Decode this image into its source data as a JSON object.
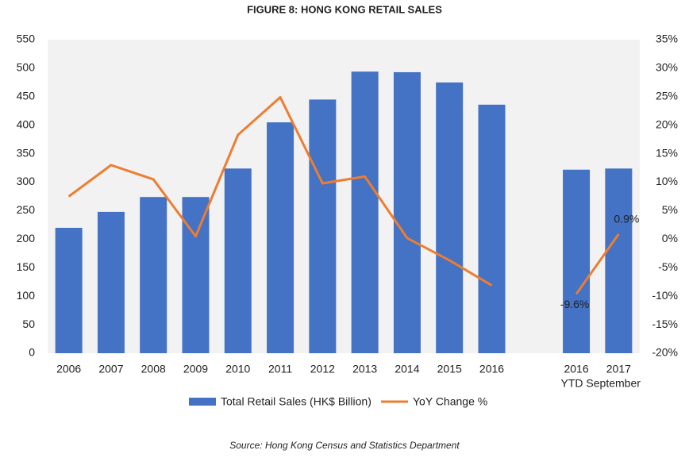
{
  "chart_data": {
    "type": "bar_line",
    "title": "FIGURE 8: HONG KONG RETAIL SALES",
    "categories": [
      "2006",
      "2007",
      "2008",
      "2009",
      "2010",
      "2011",
      "2012",
      "2013",
      "2014",
      "2015",
      "2016",
      null,
      "2016",
      "2017"
    ],
    "group_label": "YTD September",
    "series": [
      {
        "name": "Total Retail Sales (HK$ Billion)",
        "type": "bar",
        "color": "#4472c4",
        "values": [
          220,
          248,
          274,
          274,
          324,
          405,
          445,
          494,
          493,
          475,
          436,
          null,
          322,
          324
        ]
      },
      {
        "name": "YoY Change %",
        "type": "line",
        "axis": "y2",
        "color": "#ed7d31",
        "values": [
          7.5,
          13,
          10.5,
          0.5,
          18.3,
          24.9,
          9.8,
          11.0,
          0.2,
          -3.7,
          -8.1,
          null,
          -9.6,
          0.9
        ],
        "value_labels": [
          null,
          null,
          null,
          null,
          null,
          null,
          null,
          null,
          null,
          null,
          null,
          null,
          "-9.6%",
          "0.9%"
        ]
      }
    ],
    "ylim": [
      0,
      550
    ],
    "yticks": [
      0,
      50,
      100,
      150,
      200,
      250,
      300,
      350,
      400,
      450,
      500,
      550
    ],
    "y2lim": [
      -20,
      35
    ],
    "y2ticks": [
      {
        "value": -20,
        "label": "-20%"
      },
      {
        "value": -15,
        "label": "-15%"
      },
      {
        "value": -10,
        "label": "-10%"
      },
      {
        "value": -5,
        "label": "-5%"
      },
      {
        "value": 0,
        "label": "0%"
      },
      {
        "value": 5,
        "label": "5%"
      },
      {
        "value": 10,
        "label": "10%"
      },
      {
        "value": 15,
        "label": "15%"
      },
      {
        "value": 20,
        "label": "20%"
      },
      {
        "value": 25,
        "label": "25%"
      },
      {
        "value": 30,
        "label": "30%"
      },
      {
        "value": 35,
        "label": "35%"
      }
    ],
    "grid": false,
    "legend": "bottom",
    "source": "Source: Hong Kong Census and Statistics Department"
  }
}
